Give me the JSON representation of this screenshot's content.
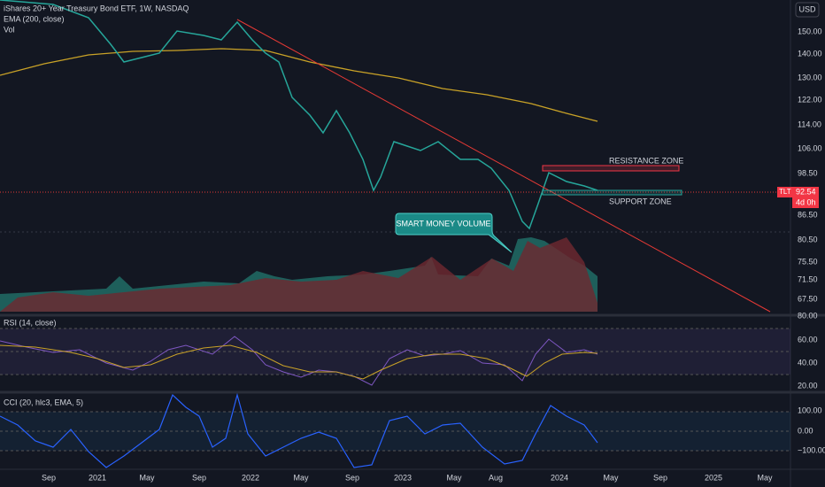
{
  "header": {
    "title": "iShares 20+ Year Treasury Bond ETF, 1W, NASDAQ",
    "ema": "EMA (200, close)",
    "vol": "Vol",
    "currency": "USD"
  },
  "price_axis": [
    "150.00",
    "140.00",
    "130.00",
    "122.00",
    "114.00",
    "106.00",
    "98.50",
    "86.50",
    "80.50",
    "75.50",
    "71.50",
    "67.50",
    "80.00"
  ],
  "badge": {
    "symbol": "TLT",
    "price": "92.54",
    "countdown": "4d 0h"
  },
  "annotations": {
    "resistance": "RESISTANCE ZONE",
    "support": "SUPPORT ZONE",
    "callout": "SMART MONEY VOLUME"
  },
  "rsi": {
    "title": "RSI (14, close)",
    "axis": [
      "60.00",
      "40.00",
      "20.00"
    ]
  },
  "cci": {
    "title": "CCI (20, hlc3, EMA, 5)",
    "axis": [
      "100.00",
      "0.00",
      "−100.00"
    ]
  },
  "time_axis": [
    "Sep",
    "2021",
    "May",
    "Sep",
    "2022",
    "May",
    "Sep",
    "2023",
    "May",
    "Aug",
    "2024",
    "May",
    "Sep",
    "2025",
    "May"
  ]
}
